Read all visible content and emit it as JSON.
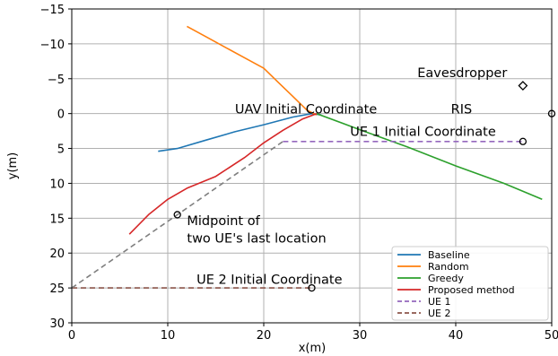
{
  "chart_data": {
    "type": "line",
    "xlabel": "x(m)",
    "ylabel": "y(m)",
    "xlim": [
      0,
      50
    ],
    "ylim": [
      30,
      -15
    ],
    "y_inverted": true,
    "grid": true,
    "x_ticks": [
      0,
      10,
      20,
      30,
      40,
      50
    ],
    "x_tick_labels": [
      "0",
      "10",
      "20",
      "30",
      "40",
      "50"
    ],
    "y_ticks": [
      -15,
      -10,
      -5,
      0,
      5,
      10,
      15,
      20,
      25,
      30
    ],
    "y_tick_labels": [
      "−15",
      "−10",
      "−5",
      "0",
      "5",
      "10",
      "15",
      "20",
      "25",
      "30"
    ],
    "legend_position": "bottom-right",
    "series": [
      {
        "name": "Baseline",
        "color": "#1f77b4",
        "dash": "solid",
        "points": [
          [
            9,
            5.4
          ],
          [
            11,
            5
          ],
          [
            14,
            3.8
          ],
          [
            17,
            2.6
          ],
          [
            20,
            1.6
          ],
          [
            23,
            0.5
          ],
          [
            25,
            0
          ],
          [
            26,
            0.2
          ]
        ]
      },
      {
        "name": "Random",
        "color": "#ff7f0e",
        "dash": "solid",
        "points": [
          [
            12,
            -12.5
          ],
          [
            14,
            -11
          ],
          [
            16,
            -9.5
          ],
          [
            18,
            -8
          ],
          [
            20,
            -6.5
          ],
          [
            21.5,
            -4.5
          ],
          [
            23,
            -2.5
          ],
          [
            24.5,
            -0.5
          ],
          [
            25.5,
            0.2
          ]
        ]
      },
      {
        "name": "Greedy",
        "color": "#2ca02c",
        "dash": "solid",
        "points": [
          [
            25.5,
            0
          ],
          [
            30,
            2.3
          ],
          [
            35,
            4.8
          ],
          [
            40,
            7.5
          ],
          [
            45,
            10
          ],
          [
            49,
            12.3
          ]
        ]
      },
      {
        "name": "Proposed method",
        "color": "#d62728",
        "dash": "solid",
        "points": [
          [
            6,
            17.3
          ],
          [
            8,
            14.5
          ],
          [
            10,
            12.3
          ],
          [
            12,
            10.7
          ],
          [
            15,
            9
          ],
          [
            18,
            6.3
          ],
          [
            20,
            4.2
          ],
          [
            22,
            2.4
          ],
          [
            24,
            0.8
          ],
          [
            25.5,
            0
          ]
        ]
      },
      {
        "name": "UE 1",
        "color": "#9467bd",
        "dash": "dashed",
        "points": [
          [
            22,
            4
          ],
          [
            47,
            4
          ]
        ]
      },
      {
        "name": "UE 2",
        "color": "#8c564b",
        "dash": "dashed",
        "points": [
          [
            0,
            25
          ],
          [
            25,
            25
          ]
        ]
      },
      {
        "name": "",
        "color": "#7f7f7f",
        "dash": "dashed",
        "points": [
          [
            0,
            25
          ],
          [
            22,
            4
          ]
        ]
      }
    ],
    "markers": [
      {
        "shape": "circle",
        "x": 47,
        "y": 4
      },
      {
        "shape": "circle",
        "x": 25,
        "y": 25
      },
      {
        "shape": "circle",
        "x": 11,
        "y": 14.5
      },
      {
        "shape": "circle",
        "x": 50,
        "y": 0
      },
      {
        "shape": "diamond",
        "x": 47,
        "y": -4
      }
    ],
    "annotations": [
      {
        "text": "Eavesdropper",
        "x": 36,
        "y": -5.2
      },
      {
        "text": "UAV Initial Coordinate",
        "x": 17,
        "y": 0
      },
      {
        "text": "RIS",
        "x": 39.5,
        "y": 0
      },
      {
        "text": "UE 1 Initial Coordinate",
        "x": 29,
        "y": 3.2
      },
      {
        "text": "Midpoint of",
        "x": 12,
        "y": 16
      },
      {
        "text": "two UE's last location",
        "x": 12,
        "y": 18.5
      },
      {
        "text": "UE 2 Initial Coordinate",
        "x": 13,
        "y": 24.4
      }
    ]
  }
}
